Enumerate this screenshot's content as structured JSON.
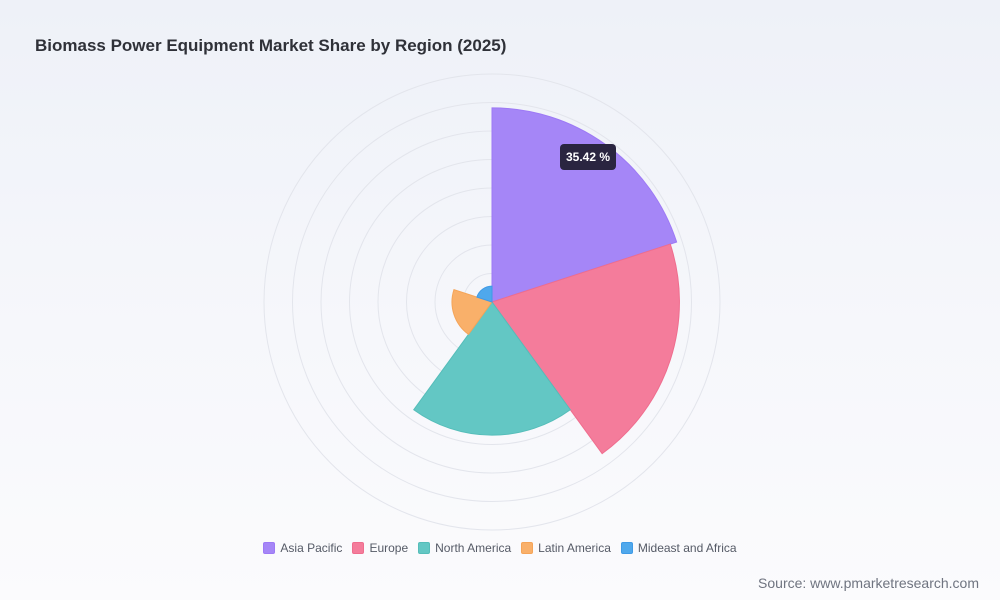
{
  "title": "Biomass Power Equipment Market Share by Region (2025)",
  "source": "Source: www.pmarketresearch.com",
  "tooltip": {
    "label": "35.42 %"
  },
  "chart_data": {
    "type": "polar-area",
    "unit": "%",
    "categories": [
      "Asia Pacific",
      "Europe",
      "North America",
      "Latin America",
      "Mideast and Africa"
    ],
    "values": [
      35.42,
      34.2,
      24.3,
      7.3,
      2.9
    ],
    "colors": [
      "#a586f7",
      "#f47c9b",
      "#63c7c4",
      "#f9b06a",
      "#4fa8ec"
    ],
    "borderColors": [
      "#9d79f5",
      "#ef6d8e",
      "#55bdb9",
      "#f5a458",
      "#3f9ae6"
    ],
    "rmax": 41.6,
    "rings": 8,
    "grid": true,
    "legend_position": "bottom"
  }
}
